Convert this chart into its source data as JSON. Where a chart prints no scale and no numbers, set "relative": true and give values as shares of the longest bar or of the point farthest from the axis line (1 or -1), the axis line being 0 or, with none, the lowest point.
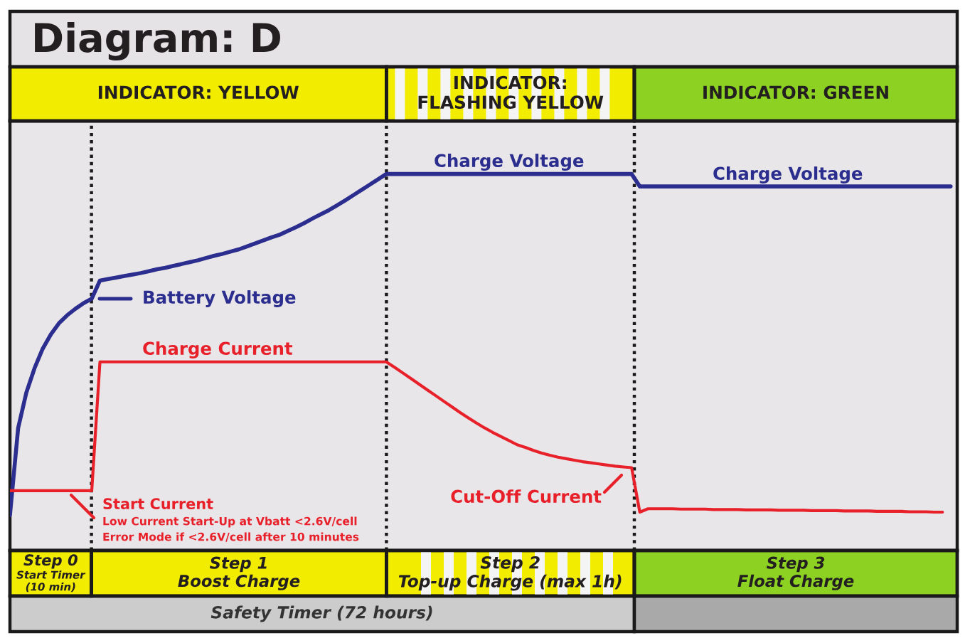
{
  "chart_data": {
    "type": "line",
    "title": "Diagram: D",
    "relative": true,
    "categories": [
      null,
      null,
      null,
      null,
      null,
      null,
      null,
      null,
      null,
      null,
      null,
      null,
      null,
      null,
      null,
      null,
      null,
      null,
      null,
      null,
      null,
      null,
      null,
      null,
      null,
      null,
      null,
      null,
      null,
      null,
      null,
      null,
      null,
      null,
      null,
      null,
      null,
      null,
      null,
      null,
      null,
      null,
      null,
      null,
      null,
      null,
      null,
      null,
      null,
      null,
      null,
      null,
      null,
      null,
      null,
      null,
      null,
      null,
      null,
      null,
      null,
      null,
      null,
      null,
      null,
      null,
      null,
      null,
      null,
      null,
      null,
      null,
      null,
      null,
      null,
      null,
      null,
      null,
      null,
      null,
      null,
      null,
      null,
      null,
      null,
      null,
      null,
      null,
      null,
      null,
      null,
      null,
      null,
      null,
      null,
      null,
      null,
      null,
      null,
      null,
      null,
      null,
      null,
      null,
      null,
      null,
      null,
      null,
      null,
      null,
      null,
      null,
      null,
      null,
      null,
      null
    ],
    "series": [
      {
        "name": "Battery Voltage",
        "color": "#2b2e8e",
        "values": [
          0.094,
          0.325,
          0.419,
          0.484,
          0.536,
          0.574,
          0.604,
          0.625,
          0.642,
          0.657,
          0.669,
          0.717,
          0.721,
          0.725,
          0.729,
          0.733,
          0.737,
          0.742,
          0.747,
          0.751,
          0.756,
          0.761,
          0.766,
          0.771,
          0.777,
          0.783,
          0.788,
          0.794,
          0.8,
          0.808,
          0.816,
          0.824,
          0.832,
          0.839,
          0.849,
          0.859,
          0.87,
          0.882,
          0.893,
          0.904,
          0.917,
          0.93,
          0.944,
          0.958,
          0.972,
          0.986,
          1,
          1,
          1,
          1,
          1,
          1,
          1,
          1,
          1,
          1,
          1,
          1,
          1,
          1,
          1,
          1,
          1,
          1,
          1,
          1,
          1,
          1,
          1,
          1,
          1,
          1,
          1,
          1,
          1,
          1,
          1,
          0.967,
          0.967,
          0.967,
          0.967,
          0.967,
          0.967,
          0.967,
          0.967,
          0.967,
          0.967,
          0.967,
          0.967,
          0.967,
          0.967,
          0.967,
          0.967,
          0.967,
          0.967,
          0.967,
          0.967,
          0.967,
          0.967,
          0.967,
          0.967,
          0.967,
          0.967,
          0.967,
          0.967,
          0.967,
          0.967,
          0.967,
          0.967,
          0.967,
          0.967,
          0.967,
          0.967,
          0.967,
          0.967,
          0.967
        ]
      },
      {
        "name": "Charge Current",
        "color": "#e8202a",
        "values": [
          0.159,
          0.159,
          0.159,
          0.159,
          0.159,
          0.159,
          0.159,
          0.159,
          0.159,
          0.159,
          0.159,
          0.501,
          0.501,
          0.501,
          0.501,
          0.501,
          0.501,
          0.501,
          0.501,
          0.501,
          0.501,
          0.501,
          0.501,
          0.501,
          0.501,
          0.501,
          0.501,
          0.501,
          0.501,
          0.501,
          0.501,
          0.501,
          0.501,
          0.501,
          0.501,
          0.501,
          0.501,
          0.501,
          0.501,
          0.501,
          0.501,
          0.501,
          0.501,
          0.501,
          0.501,
          0.501,
          0.501,
          0.487,
          0.472,
          0.457,
          0.442,
          0.427,
          0.412,
          0.397,
          0.382,
          0.367,
          0.353,
          0.339,
          0.326,
          0.314,
          0.303,
          0.292,
          0.281,
          0.274,
          0.266,
          0.259,
          0.253,
          0.248,
          0.244,
          0.24,
          0.236,
          0.233,
          0.23,
          0.227,
          0.224,
          0.222,
          0.22,
          0.102,
          0.111,
          0.111,
          0.111,
          0.111,
          0.11,
          0.11,
          0.11,
          0.11,
          0.109,
          0.109,
          0.109,
          0.109,
          0.108,
          0.108,
          0.108,
          0.108,
          0.107,
          0.107,
          0.107,
          0.107,
          0.106,
          0.106,
          0.106,
          0.106,
          0.105,
          0.105,
          0.105,
          0.105,
          0.104,
          0.104,
          0.104,
          0.104,
          0.103,
          0.103,
          0.103,
          0.102,
          0.102,
          null
        ]
      }
    ],
    "annotations": [
      "INDICATOR: YELLOW",
      "INDICATOR:\nFLASHING YELLOW",
      "INDICATOR: GREEN",
      "Charge Voltage",
      "Charge Voltage",
      "Start Current",
      "Low Current Start-Up at Vbatt <2.6V/cell",
      "Error Mode if <2.6V/cell after 10 minutes",
      "Cut-Off Current",
      "Step 0\nStart Timer\n(10 min)",
      "Step 1\nBoost Charge",
      "Step 2\nTop-up Charge (max 1h)",
      "Step 3\nFloat Charge",
      "Safety Timer (72 hours)"
    ]
  }
}
